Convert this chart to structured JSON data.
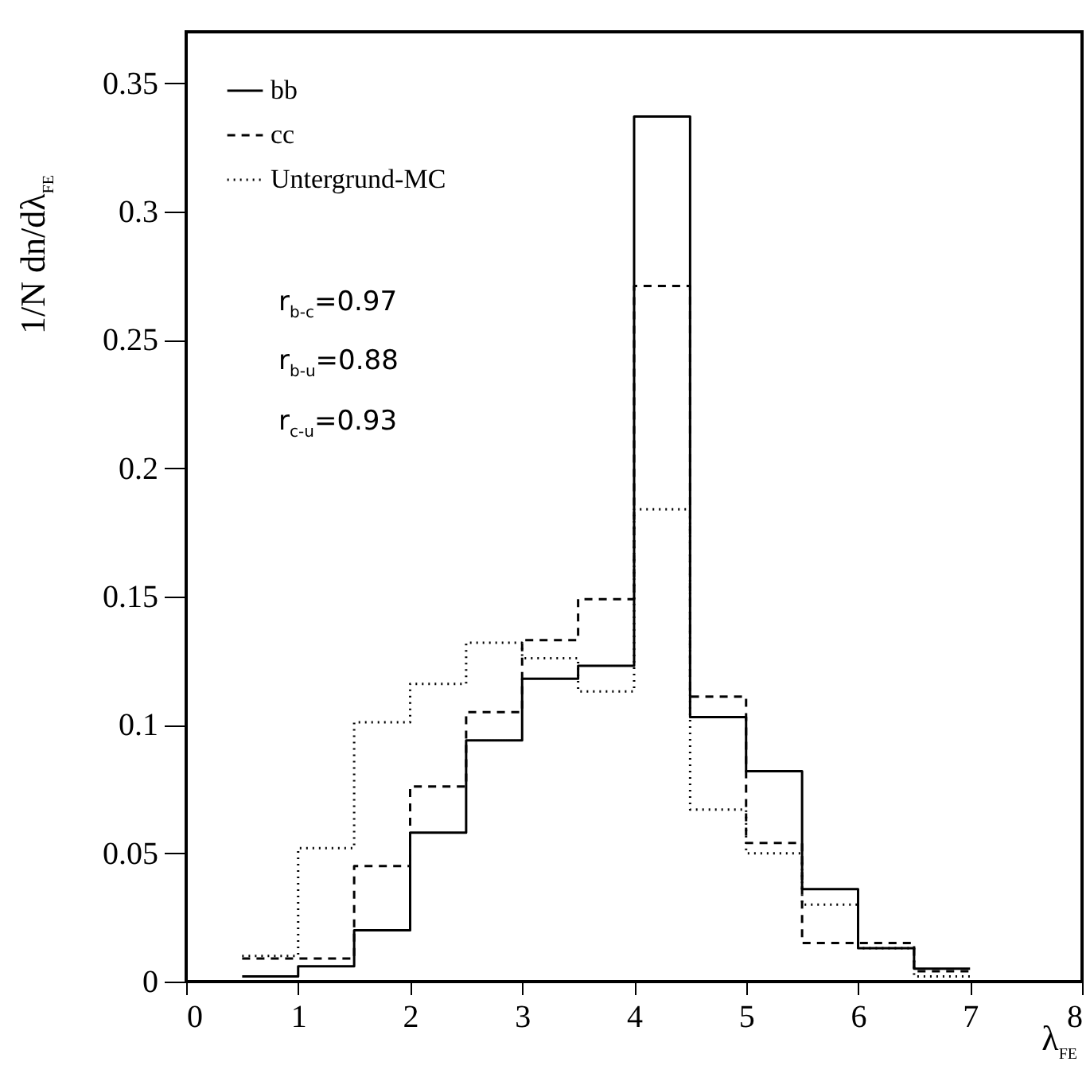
{
  "chart_data": {
    "type": "histogram",
    "xlabel": "λ$_{FE}$",
    "ylabel": "1/N dn/dλ$_{FE}$",
    "bins": [
      0.5,
      1,
      1.5,
      2,
      2.5,
      3,
      3.5,
      4,
      4.5,
      5,
      5.5,
      6,
      6.5,
      7
    ],
    "series": [
      {
        "name": "bb",
        "color": "#000000",
        "line_style": "solid",
        "values": [
          0.002,
          0.006,
          0.02,
          0.058,
          0.094,
          0.118,
          0.123,
          0.337,
          0.103,
          0.082,
          0.036,
          0.013,
          0.005
        ]
      },
      {
        "name": "cc",
        "color": "#020202",
        "line_style": "dashed",
        "values": [
          0.009,
          0.009,
          0.045,
          0.076,
          0.105,
          0.133,
          0.149,
          0.271,
          0.111,
          0.054,
          0.015,
          0.015,
          0.004
        ]
      },
      {
        "name": "Untergrund-MC",
        "color": "#010101",
        "line_style": "dotted",
        "values": [
          0.01,
          0.052,
          0.101,
          0.116,
          0.132,
          0.126,
          0.113,
          0.184,
          0.067,
          0.05,
          0.03,
          0.013,
          0.002
        ]
      }
    ],
    "xlim": [
      0,
      8
    ],
    "xticks": [
      0,
      1,
      2,
      3,
      4,
      5,
      6,
      7,
      8
    ],
    "ylim": [
      0,
      0.37
    ],
    "yticks": [
      0,
      0.05,
      0.1,
      0.15,
      0.2,
      0.25,
      0.3,
      0.35
    ],
    "legend": "top left",
    "annotations": [
      "r$_{b-c}$=0.97",
      "r$_{b-u}$=0.88",
      "r$_{c-u}$=0.93"
    ]
  }
}
